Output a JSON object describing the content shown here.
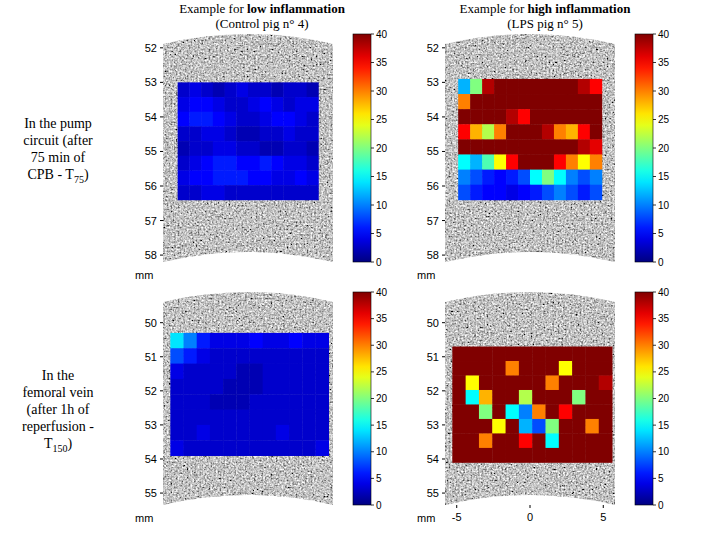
{
  "column_headers": [
    {
      "prefix": "Example for ",
      "emphasis": "low inflammation",
      "subtitle": "(Control pig n° 4)"
    },
    {
      "prefix": "Example for ",
      "emphasis": "high inflammation",
      "subtitle": "(LPS pig n° 5)"
    }
  ],
  "row_headers": [
    {
      "lines": [
        "In the pump",
        "circuit (after",
        "75 min of"
      ],
      "last": [
        "CPB - T",
        "75",
        ")"
      ]
    },
    {
      "lines": [
        "In the",
        "femoral vein",
        "(after 1h of",
        "reperfusion -"
      ],
      "last": [
        "T",
        "150",
        ")"
      ]
    }
  ],
  "chart_data": [
    {
      "type": "heatmap",
      "axis_label": "mm",
      "tick_labels": "y",
      "xlim": [
        -5.8,
        5.8
      ],
      "ylim": [
        51.6,
        58.2
      ],
      "yticks": [
        52,
        53,
        54,
        55,
        56,
        57,
        58
      ],
      "cell_x": [
        -4.8,
        4.8
      ],
      "cell_y": [
        53.0,
        56.4
      ],
      "cells": [
        [
          3,
          4,
          3,
          2,
          3,
          4,
          3,
          3,
          2,
          3,
          3,
          2
        ],
        [
          4,
          5,
          5,
          4,
          3,
          3,
          4,
          5,
          4,
          3,
          4,
          4
        ],
        [
          5,
          6,
          6,
          5,
          4,
          3,
          3,
          4,
          5,
          5,
          4,
          3
        ],
        [
          3,
          3,
          4,
          4,
          3,
          2,
          2,
          3,
          3,
          4,
          3,
          3
        ],
        [
          2,
          3,
          3,
          4,
          4,
          3,
          3,
          2,
          2,
          3,
          3,
          2
        ],
        [
          3,
          4,
          5,
          6,
          6,
          5,
          5,
          6,
          5,
          4,
          4,
          3
        ],
        [
          4,
          5,
          5,
          6,
          6,
          6,
          5,
          5,
          4,
          4,
          5,
          4
        ],
        [
          3,
          3,
          4,
          4,
          3,
          3,
          3,
          3,
          3,
          3,
          3,
          3
        ]
      ],
      "colorbar": {
        "range": [
          0,
          40
        ],
        "ticks": [
          0,
          5,
          10,
          15,
          20,
          25,
          30,
          35,
          40
        ]
      }
    },
    {
      "type": "heatmap",
      "axis_label": "mm",
      "tick_labels": "y",
      "xlim": [
        -5.8,
        5.8
      ],
      "ylim": [
        51.6,
        58.2
      ],
      "yticks": [
        52,
        53,
        54,
        55,
        56,
        57,
        58
      ],
      "cell_x": [
        -4.9,
        4.9
      ],
      "cell_y": [
        52.9,
        56.4
      ],
      "cells": [
        [
          12,
          20,
          38,
          40,
          40,
          40,
          40,
          40,
          40,
          40,
          38,
          35
        ],
        [
          30,
          40,
          40,
          40,
          40,
          40,
          40,
          40,
          40,
          40,
          40,
          40
        ],
        [
          40,
          40,
          40,
          40,
          38,
          35,
          40,
          40,
          40,
          40,
          40,
          40
        ],
        [
          35,
          28,
          22,
          30,
          40,
          40,
          40,
          38,
          30,
          28,
          35,
          40
        ],
        [
          40,
          40,
          40,
          40,
          40,
          40,
          40,
          40,
          40,
          40,
          38,
          36
        ],
        [
          15,
          12,
          18,
          25,
          35,
          40,
          40,
          40,
          35,
          30,
          25,
          30
        ],
        [
          10,
          8,
          6,
          5,
          6,
          8,
          15,
          20,
          15,
          10,
          8,
          10
        ],
        [
          8,
          6,
          5,
          5,
          4,
          5,
          6,
          8,
          10,
          8,
          6,
          8
        ]
      ],
      "colorbar": {
        "range": [
          0,
          40
        ],
        "ticks": [
          0,
          5,
          10,
          15,
          20,
          25,
          30,
          35,
          40
        ]
      }
    },
    {
      "type": "heatmap",
      "axis_label": "mm",
      "tick_labels": "y",
      "xlim": [
        -5.8,
        5.8
      ],
      "ylim": [
        49.1,
        55.35
      ],
      "yticks": [
        50,
        51,
        52,
        53,
        54,
        55
      ],
      "cell_x": [
        -5.3,
        5.5
      ],
      "cell_y": [
        50.3,
        53.9
      ],
      "cells": [
        [
          14,
          10,
          6,
          4,
          4,
          4,
          5,
          4,
          4,
          5,
          4,
          4
        ],
        [
          8,
          6,
          4,
          3,
          3,
          3,
          3,
          3,
          3,
          3,
          3,
          3
        ],
        [
          4,
          3,
          3,
          3,
          3,
          2,
          2,
          3,
          3,
          3,
          3,
          3
        ],
        [
          3,
          3,
          3,
          3,
          2,
          2,
          2,
          3,
          3,
          3,
          3,
          3
        ],
        [
          3,
          3,
          3,
          2,
          2,
          2,
          3,
          3,
          3,
          3,
          3,
          3
        ],
        [
          3,
          3,
          3,
          3,
          3,
          3,
          3,
          3,
          3,
          3,
          3,
          3
        ],
        [
          3,
          3,
          4,
          3,
          3,
          3,
          3,
          3,
          4,
          3,
          3,
          3
        ],
        [
          4,
          3,
          3,
          3,
          3,
          3,
          3,
          3,
          3,
          3,
          3,
          4
        ]
      ],
      "colorbar": {
        "range": [
          0,
          40
        ],
        "ticks": [
          0,
          5,
          10,
          15,
          20,
          25,
          30,
          35,
          40
        ]
      }
    },
    {
      "type": "heatmap",
      "axis_label": "mm",
      "xlim": [
        -5.8,
        5.8
      ],
      "ylim": [
        49.1,
        55.35
      ],
      "xticks": [
        -5,
        0,
        5
      ],
      "yticks": [
        50,
        51,
        52,
        53,
        54,
        55
      ],
      "cell_x": [
        -5.3,
        5.6
      ],
      "cell_y": [
        50.7,
        54.1
      ],
      "cells": [
        [
          40,
          40,
          40,
          40,
          40,
          40,
          40,
          40,
          40,
          40,
          40,
          40
        ],
        [
          40,
          40,
          40,
          40,
          30,
          40,
          40,
          40,
          25,
          40,
          40,
          40
        ],
        [
          40,
          25,
          40,
          40,
          40,
          40,
          40,
          30,
          40,
          40,
          40,
          38
        ],
        [
          40,
          15,
          28,
          40,
          40,
          22,
          40,
          40,
          40,
          20,
          40,
          40
        ],
        [
          40,
          40,
          20,
          40,
          15,
          10,
          30,
          40,
          35,
          40,
          40,
          40
        ],
        [
          40,
          40,
          40,
          25,
          40,
          12,
          8,
          20,
          40,
          40,
          30,
          40
        ],
        [
          40,
          40,
          30,
          40,
          40,
          35,
          40,
          15,
          40,
          40,
          40,
          40
        ],
        [
          40,
          40,
          40,
          40,
          40,
          40,
          40,
          40,
          40,
          40,
          40,
          40
        ]
      ],
      "colorbar": {
        "range": [
          0,
          40
        ],
        "ticks": [
          0,
          5,
          10,
          15,
          20,
          25,
          30,
          35,
          40
        ]
      }
    }
  ]
}
